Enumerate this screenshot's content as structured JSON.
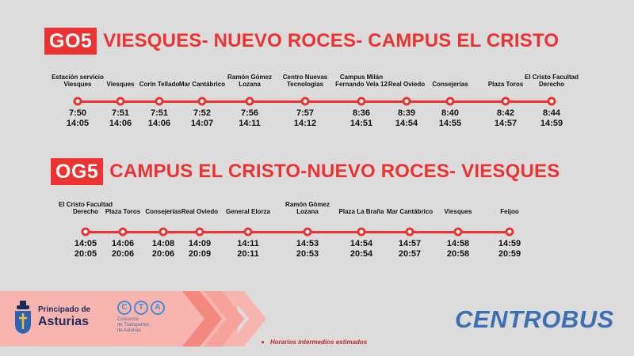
{
  "routes": [
    {
      "code": "GO5",
      "title": "VIESQUES- NUEVO ROCES- CAMPUS EL CRISTO",
      "stops": [
        {
          "name": "Estación servicio Viesques",
          "t1": "7:50",
          "t2": "14:05"
        },
        {
          "name": "Viesques",
          "t1": "7:51",
          "t2": "14:06"
        },
        {
          "name": "Corín Tellado",
          "t1": "7:51",
          "t2": "14:06"
        },
        {
          "name": "Mar Cantábrico",
          "t1": "7:52",
          "t2": "14:07"
        },
        {
          "name": "Ramón Gómez Lozana",
          "t1": "7:56",
          "t2": "14:11"
        },
        {
          "name": "Centro Nuevas Tecnologías",
          "t1": "7:57",
          "t2": "14:12"
        },
        {
          "name": "Campus Milán Fernando Vela 12",
          "t1": "8:36",
          "t2": "14:51"
        },
        {
          "name": "Real Oviedo",
          "t1": "8:39",
          "t2": "14:54"
        },
        {
          "name": "Consejerías",
          "t1": "8:40",
          "t2": "14:55"
        },
        {
          "name": "Plaza Toros",
          "t1": "8:42",
          "t2": "14:57"
        },
        {
          "name": "El Cristo Facultad Derecho",
          "t1": "8:44",
          "t2": "14:59"
        }
      ]
    },
    {
      "code": "OG5",
      "title": "CAMPUS EL CRISTO-NUEVO ROCES- VIESQUES",
      "stops": [
        {
          "name": "El Cristo Facultad Derecho",
          "t1": "14:05",
          "t2": "20:05"
        },
        {
          "name": "Plaza Toros",
          "t1": "14:06",
          "t2": "20:06"
        },
        {
          "name": "Consejerías",
          "t1": "14:08",
          "t2": "20:06"
        },
        {
          "name": "Real Oviedo",
          "t1": "14:09",
          "t2": "20:09"
        },
        {
          "name": "General Elorza",
          "t1": "14:11",
          "t2": "20:11"
        },
        {
          "name": "Ramón Gómez Lozana",
          "t1": "14:53",
          "t2": "20:53"
        },
        {
          "name": "Plaza La Braña",
          "t1": "14:54",
          "t2": "20:54"
        },
        {
          "name": "Mar Cantábrico",
          "t1": "14:57",
          "t2": "20:57"
        },
        {
          "name": "Viesques",
          "t1": "14:58",
          "t2": "20:58"
        },
        {
          "name": "Feijoo",
          "t1": "14:59",
          "t2": "20:59"
        }
      ]
    }
  ],
  "footer": {
    "principado_small": "Principado de",
    "principado_big": "Asturias",
    "cta_letters": [
      "C",
      "T",
      "A"
    ],
    "cta_sub1": "Consorcio",
    "cta_sub2": "de Transportes",
    "cta_sub3": "de Asturias",
    "note": "Horarios intermedios estimados",
    "brand": "CENTROBUS"
  },
  "colors": {
    "accent": "#ee3131",
    "brand": "#3d6fb4",
    "background": "#dcdcdc"
  }
}
